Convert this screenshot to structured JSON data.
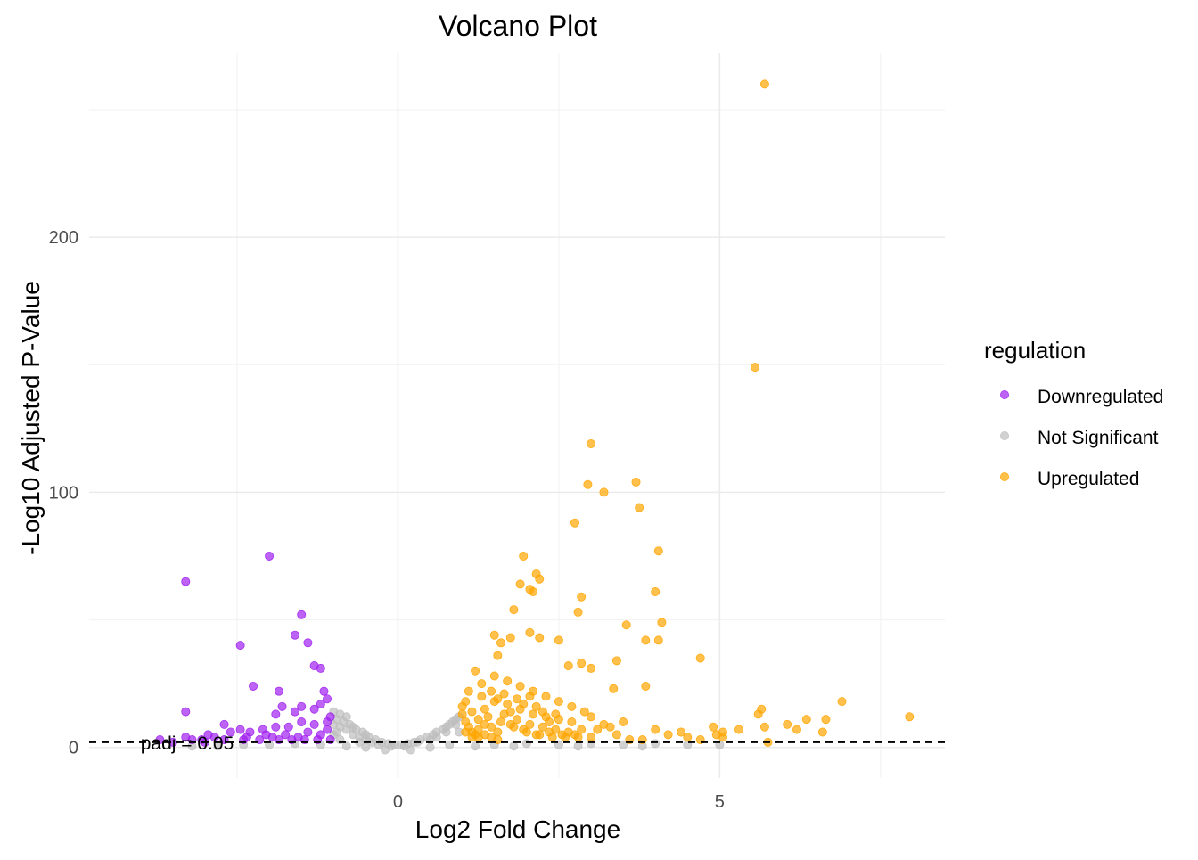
{
  "chart_data": {
    "type": "scatter",
    "title": "Volcano Plot",
    "xlabel": "Log2 Fold Change",
    "ylabel": "-Log10 Adjusted P-Value",
    "xlim": [
      -4.8,
      8.5
    ],
    "ylim": [
      -12,
      272
    ],
    "x_ticks": [
      0,
      5
    ],
    "y_ticks": [
      0,
      100,
      200
    ],
    "x_tick_labels": [
      "0",
      "5"
    ],
    "y_tick_labels": [
      "0",
      "100",
      "200"
    ],
    "grid": true,
    "threshold": {
      "y": 2,
      "label": "padj = 0.05",
      "style": "dashed"
    },
    "legend": {
      "title": "regulation",
      "position": "right",
      "entries": [
        "Downregulated",
        "Not Significant",
        "Upregulated"
      ]
    },
    "colors": {
      "Downregulated": "#A020F0",
      "Not Significant": "#BEBEBE",
      "Upregulated": "#FFA500"
    },
    "series": [
      {
        "name": "Downregulated",
        "points": [
          [
            -3.3,
            65
          ],
          [
            -2.0,
            75
          ],
          [
            -1.5,
            52
          ],
          [
            -1.6,
            44
          ],
          [
            -1.4,
            41
          ],
          [
            -2.45,
            40
          ],
          [
            -1.3,
            32
          ],
          [
            -1.2,
            31
          ],
          [
            -2.25,
            24
          ],
          [
            -1.85,
            22
          ],
          [
            -1.15,
            22
          ],
          [
            -1.1,
            19
          ],
          [
            -1.2,
            17
          ],
          [
            -1.3,
            15
          ],
          [
            -1.5,
            16
          ],
          [
            -1.8,
            16
          ],
          [
            -1.6,
            14
          ],
          [
            -1.9,
            13
          ],
          [
            -3.3,
            14
          ],
          [
            -1.05,
            12
          ],
          [
            -1.1,
            10
          ],
          [
            -1.3,
            9
          ],
          [
            -1.5,
            10
          ],
          [
            -1.7,
            8
          ],
          [
            -1.9,
            8
          ],
          [
            -2.1,
            7
          ],
          [
            -2.3,
            6
          ],
          [
            -2.6,
            6
          ],
          [
            -2.7,
            9
          ],
          [
            -2.45,
            7
          ],
          [
            -2.85,
            4
          ],
          [
            -2.95,
            5
          ],
          [
            -3.2,
            3
          ],
          [
            -3.05,
            3
          ],
          [
            -3.5,
            2
          ],
          [
            -3.7,
            3
          ],
          [
            -3.3,
            4
          ],
          [
            -1.1,
            7
          ],
          [
            -1.2,
            5
          ],
          [
            -1.4,
            6
          ],
          [
            -1.55,
            4
          ],
          [
            -1.75,
            5
          ],
          [
            -1.95,
            4
          ],
          [
            -2.15,
            3
          ],
          [
            -2.35,
            4
          ],
          [
            -1.05,
            3
          ],
          [
            -1.25,
            3
          ],
          [
            -1.45,
            3
          ],
          [
            -1.65,
            3
          ],
          [
            -1.85,
            3
          ],
          [
            -2.05,
            5
          ],
          [
            -2.4,
            3
          ],
          [
            -2.7,
            3
          ],
          [
            -3.0,
            2
          ]
        ]
      },
      {
        "name": "Not Significant",
        "points": [
          [
            -1.0,
            14
          ],
          [
            -0.9,
            13
          ],
          [
            -0.8,
            12
          ],
          [
            -0.95,
            11
          ],
          [
            -0.85,
            10
          ],
          [
            -0.75,
            9
          ],
          [
            -0.9,
            8
          ],
          [
            -0.7,
            8
          ],
          [
            -0.65,
            7
          ],
          [
            -0.8,
            7
          ],
          [
            -0.55,
            6
          ],
          [
            -0.7,
            5
          ],
          [
            -0.5,
            5
          ],
          [
            -0.45,
            4
          ],
          [
            -0.6,
            4
          ],
          [
            -0.35,
            3
          ],
          [
            -0.5,
            3
          ],
          [
            -0.25,
            2
          ],
          [
            -0.4,
            2
          ],
          [
            -0.15,
            1.5
          ],
          [
            -0.05,
            1
          ],
          [
            0.05,
            1
          ],
          [
            0.15,
            1.5
          ],
          [
            0.25,
            2
          ],
          [
            0.35,
            3
          ],
          [
            0.45,
            4
          ],
          [
            0.55,
            5
          ],
          [
            0.6,
            6
          ],
          [
            0.7,
            7
          ],
          [
            0.75,
            8
          ],
          [
            0.8,
            9
          ],
          [
            0.85,
            10
          ],
          [
            0.9,
            11
          ],
          [
            0.95,
            12
          ],
          [
            0.9,
            9
          ],
          [
            0.75,
            6
          ],
          [
            0.6,
            4
          ],
          [
            0.5,
            3
          ],
          [
            0.3,
            2
          ],
          [
            0.1,
            0.5
          ],
          [
            -0.1,
            0.5
          ],
          [
            -0.3,
            1
          ],
          [
            -0.6,
            2
          ],
          [
            -0.9,
            3
          ],
          [
            -1.2,
            1
          ],
          [
            -1.6,
            1.5
          ],
          [
            -2.0,
            1
          ],
          [
            -2.4,
            1
          ],
          [
            -2.8,
            0.5
          ],
          [
            -3.2,
            0.5
          ],
          [
            -1.0,
            5
          ],
          [
            -0.95,
            6
          ],
          [
            -1.0,
            9
          ],
          [
            0.95,
            6
          ],
          [
            1.5,
            1
          ],
          [
            2.0,
            1.5
          ],
          [
            2.5,
            1
          ],
          [
            3.0,
            1.5
          ],
          [
            3.5,
            1
          ],
          [
            4.0,
            1.5
          ],
          [
            4.5,
            1
          ],
          [
            5.0,
            1
          ],
          [
            1.2,
            0.5
          ],
          [
            1.8,
            0.5
          ],
          [
            2.8,
            0.5
          ],
          [
            3.8,
            0.5
          ],
          [
            -0.2,
            -1
          ],
          [
            0.2,
            -1
          ],
          [
            -0.5,
            0
          ],
          [
            0.5,
            0
          ],
          [
            -0.8,
            0.5
          ],
          [
            0.8,
            1
          ]
        ]
      },
      {
        "name": "Upregulated",
        "points": [
          [
            5.7,
            260
          ],
          [
            5.55,
            149
          ],
          [
            3.0,
            119
          ],
          [
            3.7,
            104
          ],
          [
            2.95,
            103
          ],
          [
            3.2,
            100
          ],
          [
            3.75,
            94
          ],
          [
            2.75,
            88
          ],
          [
            4.05,
            77
          ],
          [
            1.95,
            75
          ],
          [
            2.15,
            68
          ],
          [
            2.2,
            66
          ],
          [
            1.9,
            64
          ],
          [
            2.05,
            62
          ],
          [
            2.1,
            61
          ],
          [
            2.85,
            59
          ],
          [
            4.0,
            61
          ],
          [
            1.8,
            54
          ],
          [
            2.8,
            53
          ],
          [
            3.55,
            48
          ],
          [
            4.1,
            49
          ],
          [
            2.05,
            45
          ],
          [
            1.6,
            41
          ],
          [
            1.5,
            44
          ],
          [
            1.75,
            43
          ],
          [
            2.2,
            43
          ],
          [
            2.5,
            42
          ],
          [
            3.85,
            42
          ],
          [
            4.05,
            42
          ],
          [
            1.55,
            36
          ],
          [
            2.85,
            33
          ],
          [
            3.4,
            34
          ],
          [
            4.7,
            35
          ],
          [
            2.65,
            32
          ],
          [
            3.0,
            31
          ],
          [
            3.35,
            23
          ],
          [
            3.85,
            24
          ],
          [
            1.2,
            30
          ],
          [
            1.3,
            25
          ],
          [
            1.5,
            28
          ],
          [
            1.7,
            26
          ],
          [
            1.9,
            24
          ],
          [
            2.1,
            22
          ],
          [
            2.3,
            20
          ],
          [
            2.5,
            18
          ],
          [
            2.7,
            16
          ],
          [
            2.9,
            14
          ],
          [
            1.1,
            22
          ],
          [
            1.3,
            20
          ],
          [
            1.5,
            18
          ],
          [
            1.7,
            17
          ],
          [
            1.9,
            15
          ],
          [
            2.1,
            13
          ],
          [
            2.3,
            12
          ],
          [
            2.5,
            11
          ],
          [
            2.7,
            10
          ],
          [
            3.5,
            10
          ],
          [
            3.3,
            8
          ],
          [
            3.1,
            7
          ],
          [
            3.0,
            12
          ],
          [
            3.2,
            9
          ],
          [
            1.0,
            16
          ],
          [
            1.0,
            13
          ],
          [
            1.05,
            10
          ],
          [
            1.1,
            8
          ],
          [
            1.15,
            6
          ],
          [
            1.2,
            5
          ],
          [
            1.25,
            4
          ],
          [
            1.4,
            12
          ],
          [
            1.6,
            10
          ],
          [
            1.8,
            8
          ],
          [
            2.0,
            6
          ],
          [
            2.2,
            5
          ],
          [
            2.4,
            4
          ],
          [
            2.6,
            4
          ],
          [
            2.8,
            4
          ],
          [
            3.0,
            4
          ],
          [
            3.4,
            5
          ],
          [
            3.6,
            3
          ],
          [
            3.8,
            3
          ],
          [
            4.0,
            7
          ],
          [
            4.2,
            5
          ],
          [
            4.4,
            6
          ],
          [
            4.5,
            4
          ],
          [
            4.7,
            3
          ],
          [
            4.9,
            8
          ],
          [
            5.05,
            6
          ],
          [
            5.3,
            7
          ],
          [
            5.6,
            13
          ],
          [
            5.65,
            15
          ],
          [
            5.7,
            8
          ],
          [
            5.75,
            2
          ],
          [
            6.05,
            9
          ],
          [
            6.2,
            7
          ],
          [
            6.35,
            11
          ],
          [
            6.6,
            6
          ],
          [
            6.65,
            11
          ],
          [
            6.9,
            18
          ],
          [
            7.95,
            12
          ],
          [
            5.05,
            4
          ],
          [
            4.95,
            5
          ],
          [
            1.35,
            15
          ],
          [
            1.45,
            8
          ],
          [
            1.55,
            6
          ],
          [
            1.65,
            13
          ],
          [
            1.75,
            9
          ],
          [
            1.85,
            11
          ],
          [
            1.95,
            7
          ],
          [
            2.05,
            9
          ],
          [
            2.15,
            5
          ],
          [
            2.25,
            8
          ],
          [
            2.35,
            6
          ],
          [
            2.45,
            7
          ],
          [
            2.55,
            5
          ],
          [
            2.65,
            6
          ],
          [
            2.75,
            5
          ],
          [
            2.85,
            7
          ],
          [
            1.05,
            18
          ],
          [
            1.15,
            14
          ],
          [
            1.25,
            11
          ],
          [
            1.35,
            9
          ],
          [
            1.45,
            22
          ],
          [
            1.55,
            19
          ],
          [
            1.65,
            21
          ],
          [
            1.75,
            14
          ],
          [
            1.85,
            19
          ],
          [
            1.95,
            17
          ],
          [
            2.05,
            20
          ],
          [
            2.15,
            16
          ],
          [
            2.25,
            14
          ],
          [
            2.35,
            10
          ],
          [
            2.45,
            13
          ],
          [
            1.05,
            6
          ],
          [
            1.15,
            4
          ],
          [
            1.25,
            7
          ],
          [
            1.35,
            5
          ],
          [
            1.45,
            4
          ],
          [
            1.55,
            3
          ]
        ]
      }
    ]
  }
}
